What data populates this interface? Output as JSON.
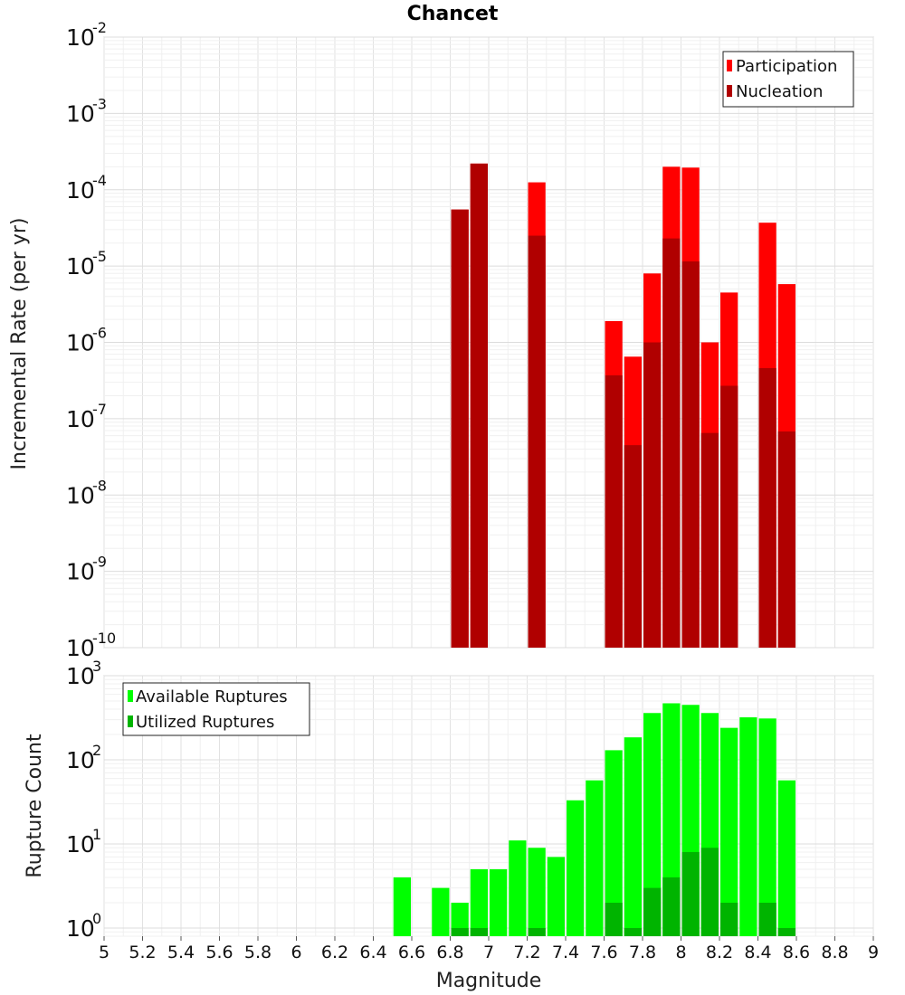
{
  "chart_data": {
    "title": "Chancet",
    "x_axis": {
      "label": "Magnitude",
      "range": [
        5,
        9
      ],
      "ticks": [
        "5",
        "5.2",
        "5.4",
        "5.6",
        "5.8",
        "6",
        "6.2",
        "6.4",
        "6.6",
        "6.8",
        "7",
        "7.2",
        "7.4",
        "7.6",
        "7.8",
        "8",
        "8.2",
        "8.4",
        "8.6",
        "8.8",
        "9"
      ],
      "bin_width": 0.1
    },
    "panels": [
      {
        "type": "bar",
        "ylabel": "Incremental Rate (per yr)",
        "scale": "log",
        "ylim": [
          1e-10,
          0.01
        ],
        "y_tick_exponents": [
          -10,
          -9,
          -8,
          -7,
          -6,
          -5,
          -4,
          -3,
          -2
        ],
        "grid": true,
        "legend_position": "top-right",
        "series": [
          {
            "name": "Participation",
            "color": "#ff0000",
            "x": [
              6.85,
              6.95,
              7.25,
              7.65,
              7.75,
              7.85,
              7.95,
              8.05,
              8.15,
              8.25,
              8.45,
              8.55
            ],
            "values": [
              5.5e-05,
              0.00022,
              0.000125,
              1.9e-06,
              6.5e-07,
              8e-06,
              0.0002,
              0.000195,
              1e-06,
              4.5e-06,
              3.7e-05,
              5.8e-06
            ]
          },
          {
            "name": "Nucleation",
            "color": "#b00000",
            "x": [
              6.85,
              6.95,
              7.25,
              7.65,
              7.75,
              7.85,
              7.95,
              8.05,
              8.15,
              8.25,
              8.45,
              8.55
            ],
            "values": [
              5.5e-05,
              0.00022,
              2.5e-05,
              3.7e-07,
              4.5e-08,
              1e-06,
              2.3e-05,
              1.15e-05,
              6.5e-08,
              2.7e-07,
              4.6e-07,
              6.8e-08
            ]
          }
        ]
      },
      {
        "type": "bar",
        "ylabel": "Rupture Count",
        "scale": "log",
        "ylim": [
          0.8,
          1000
        ],
        "y_tick_exponents": [
          0,
          1,
          2,
          3
        ],
        "grid": true,
        "legend_position": "top-left",
        "series": [
          {
            "name": "Available Ruptures",
            "color": "#00ff00",
            "x": [
              6.55,
              6.75,
              6.85,
              6.95,
              7.05,
              7.15,
              7.25,
              7.35,
              7.45,
              7.55,
              7.65,
              7.75,
              7.85,
              7.95,
              8.05,
              8.15,
              8.25,
              8.35,
              8.45,
              8.55
            ],
            "values": [
              4,
              3,
              2,
              5,
              5,
              11,
              9,
              7,
              33,
              57,
              130,
              185,
              360,
              470,
              450,
              360,
              240,
              320,
              310,
              57
            ]
          },
          {
            "name": "Utilized Ruptures",
            "color": "#00b400",
            "x": [
              6.85,
              6.95,
              7.25,
              7.65,
              7.75,
              7.85,
              7.95,
              8.05,
              8.15,
              8.25,
              8.45,
              8.55
            ],
            "values": [
              1,
              1,
              1,
              2,
              1,
              3,
              4,
              8,
              9,
              2,
              2,
              1
            ]
          }
        ]
      }
    ]
  }
}
